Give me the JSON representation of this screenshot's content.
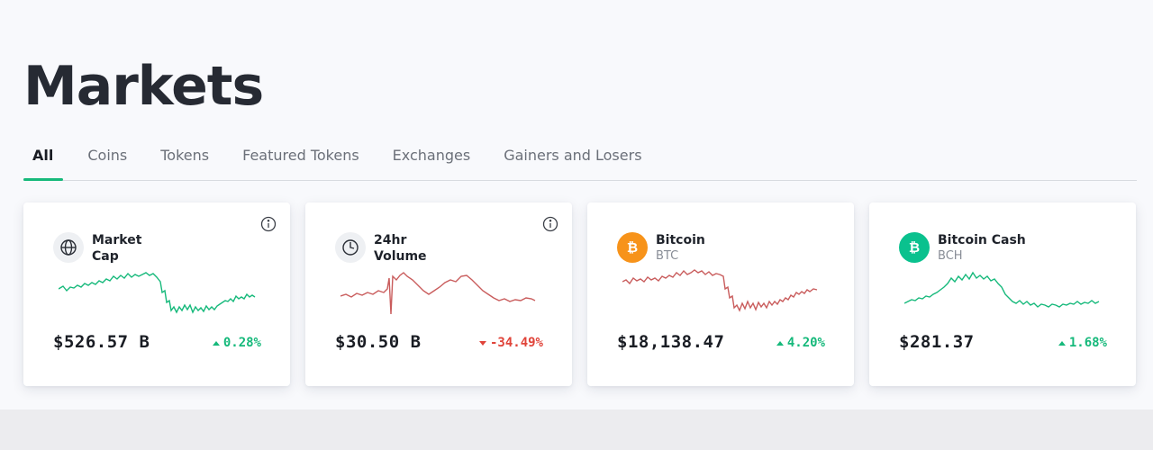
{
  "page": {
    "title": "Markets"
  },
  "tabs": [
    {
      "label": "All",
      "active": true
    },
    {
      "label": "Coins",
      "active": false
    },
    {
      "label": "Tokens",
      "active": false
    },
    {
      "label": "Featured Tokens",
      "active": false
    },
    {
      "label": "Exchanges",
      "active": false
    },
    {
      "label": "Gainers and Losers",
      "active": false
    }
  ],
  "cards": [
    {
      "title": "Market Cap",
      "subtitle": "",
      "icon": "globe-icon",
      "value": "$526.57 B",
      "change": "0.28%",
      "direction": "up",
      "color": "#16b97b",
      "has_info": true
    },
    {
      "title": "24hr Volume",
      "subtitle": "",
      "icon": "clock-icon",
      "value": "$30.50 B",
      "change": "-34.49%",
      "direction": "down",
      "color": "#c95c5c",
      "has_info": true
    },
    {
      "title": "Bitcoin",
      "subtitle": "BTC",
      "icon": "bitcoin-icon",
      "value": "$18,138.47",
      "change": "4.20%",
      "direction": "up",
      "color": "#c95c5c",
      "has_info": false
    },
    {
      "title": "Bitcoin Cash",
      "subtitle": "BCH",
      "icon": "bitcoin-cash-icon",
      "value": "$281.37",
      "change": "1.68%",
      "direction": "up",
      "color": "#16b97b",
      "has_info": false
    }
  ],
  "colors": {
    "accent": "#16b97b",
    "negative": "#e0443a",
    "btc": "#f7931a",
    "bch": "#0ac18e"
  }
}
